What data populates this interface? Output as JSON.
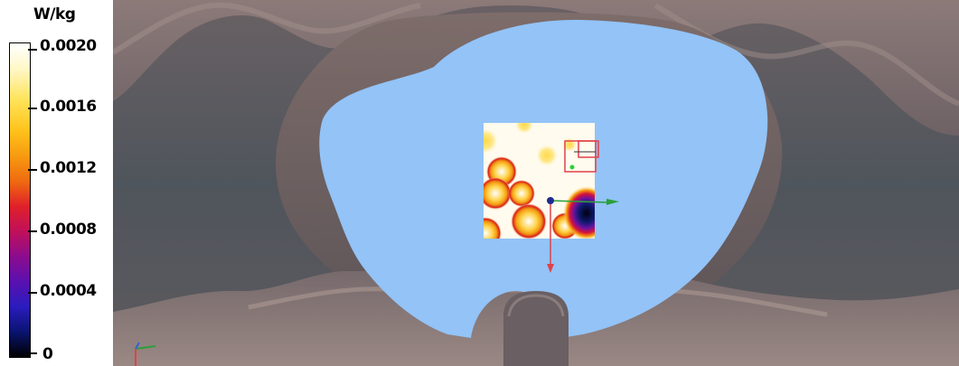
{
  "legend": {
    "unit": "W/kg",
    "ticks": [
      "0.0020",
      "0.0016",
      "0.0012",
      "0.0008",
      "0.0004",
      "0"
    ]
  },
  "colors": {
    "phantom_fill": "#93c3f7",
    "model_shell": "#7b6c6e",
    "background": "#5a5c62"
  },
  "icons": {
    "probe_origin": "probe-origin-icon",
    "axis_triad": "axis-triad-icon"
  }
}
